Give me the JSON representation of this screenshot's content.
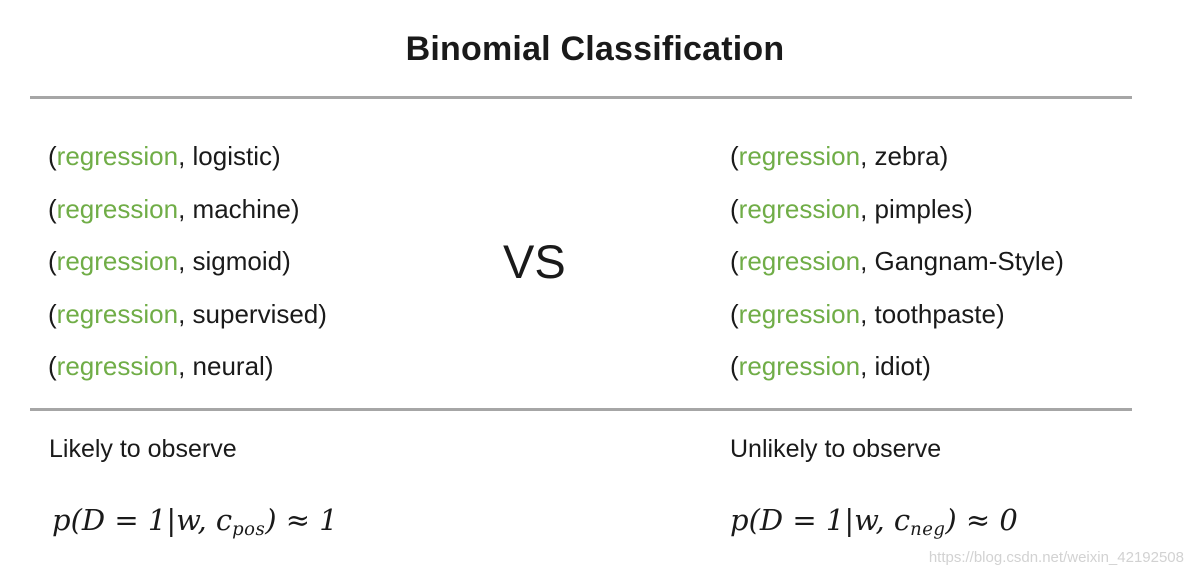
{
  "title": "Binomial Classification",
  "vs_label": "VS",
  "punct": {
    "open": "(",
    "comma": ", ",
    "close": ")"
  },
  "colors": {
    "green": "#70AD47",
    "text": "#1a1a1a",
    "divider": "#a6a6a6",
    "watermark": "#d2d2d2"
  },
  "columns": {
    "left": {
      "pairs": [
        {
          "first": "regression",
          "second": "logistic"
        },
        {
          "first": "regression",
          "second": "machine"
        },
        {
          "first": "regression",
          "second": "sigmoid"
        },
        {
          "first": "regression",
          "second": "supervised"
        },
        {
          "first": "regression",
          "second": "neural"
        }
      ],
      "caption": "Likely to observe",
      "formula": {
        "prefix": "p(D = 1|w, c",
        "subscript": "pos",
        "suffix": ") ≈ 1"
      }
    },
    "right": {
      "pairs": [
        {
          "first": "regression",
          "second": "zebra"
        },
        {
          "first": "regression",
          "second": "pimples"
        },
        {
          "first": "regression",
          "second": "Gangnam-Style"
        },
        {
          "first": "regression",
          "second": "toothpaste"
        },
        {
          "first": "regression",
          "second": "idiot"
        }
      ],
      "caption": "Unlikely to observe",
      "formula": {
        "prefix": "p(D = 1|w, c",
        "subscript": "neg",
        "suffix": ") ≈ 0"
      }
    }
  },
  "watermark": "https://blog.csdn.net/weixin_42192508"
}
